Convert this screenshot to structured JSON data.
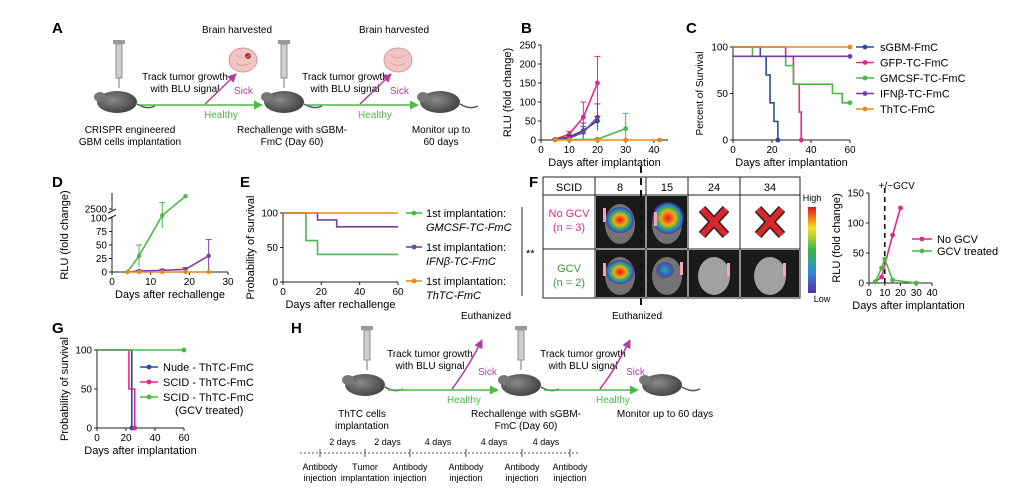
{
  "figure": {
    "panel_labels": [
      "A",
      "B",
      "C",
      "D",
      "E",
      "F",
      "G",
      "H"
    ]
  },
  "colors": {
    "magenta": "#e0288c",
    "green": "#4cb848",
    "blue": "#2c4a9e",
    "purple": "#7b3fa3",
    "orange": "#e88a1a",
    "gray": "#444444"
  },
  "panel_a": {
    "brain1": "Brain harvested",
    "brain2": "Brain harvested",
    "track1": "Track tumor growth",
    "track1b": "with BLU signal",
    "track2": "Track tumor growth",
    "track2b": "with BLU signal",
    "sick1": "Sick",
    "sick2": "Sick",
    "healthy1": "Healthy",
    "healthy2": "Healthy",
    "cap1a": "CRISPR engineered",
    "cap1b": "GBM cells implantation",
    "cap2a": "Rechallenge with sGBM-",
    "cap2b": "FmC (Day 60)",
    "cap3a": "Monitor up to",
    "cap3b": "60 days"
  },
  "panel_h": {
    "euth1": "Euthanized",
    "euth2": "Euthanized",
    "track1": "Track tumor growth",
    "track1b": "with BLU signal",
    "track2": "Track tumor growth",
    "track2b": "with BLU signal",
    "sick1": "Sick",
    "sick2": "Sick",
    "healthy1": "Healthy",
    "healthy2": "Healthy",
    "cap1a": "ThTC cells",
    "cap1b": "implantation",
    "cap2a": "Rechallenge with sGBM-",
    "cap2b": "FmC (Day 60)",
    "cap3": "Monitor up to 60 days",
    "intervals": [
      "2 days",
      "2 days",
      "4 days",
      "4 days",
      "4 days"
    ],
    "events": [
      [
        "Antibody",
        "injection"
      ],
      [
        "Tumor",
        "implantation"
      ],
      [
        "Antibody",
        "injection"
      ],
      [
        "Antibody",
        "injection"
      ],
      [
        "Antibody",
        "injection"
      ],
      [
        "Antibody",
        "injection"
      ]
    ]
  },
  "panel_f": {
    "header": [
      "SCID",
      "8",
      "15",
      "24",
      "34"
    ],
    "row1a": "No GCV",
    "row1b": "(n = 3)",
    "row2a": "GCV",
    "row2b": "(n = 2)",
    "scale_high": "High",
    "scale_low": "Low"
  },
  "chart_data": [
    {
      "panel": "B",
      "type": "line",
      "xlabel": "Days after implantation",
      "ylabel": "RLU (fold change)",
      "xlim": [
        0,
        45
      ],
      "ylim": [
        0,
        250
      ],
      "xticks": [
        "0",
        "10",
        "20",
        "30",
        "40"
      ],
      "yticks": [
        "0",
        "50",
        "100",
        "150",
        "200",
        "250"
      ],
      "series": [
        {
          "color": "#e0288c",
          "x": [
            5,
            10,
            15,
            20
          ],
          "y": [
            2,
            15,
            60,
            150
          ],
          "err": [
            1,
            8,
            40,
            70
          ]
        },
        {
          "color": "#2c4a9e",
          "x": [
            5,
            10,
            15,
            20
          ],
          "y": [
            1,
            8,
            25,
            50
          ],
          "err": [
            1,
            4,
            10,
            12
          ]
        },
        {
          "color": "#7b3fa3",
          "x": [
            5,
            10,
            15,
            20
          ],
          "y": [
            1,
            5,
            20,
            60
          ],
          "err": [
            1,
            3,
            25,
            35
          ]
        },
        {
          "color": "#4cb848",
          "x": [
            5,
            10,
            20,
            30
          ],
          "y": [
            0,
            1,
            2,
            30
          ],
          "err": [
            0,
            1,
            2,
            40
          ]
        },
        {
          "color": "#e88a1a",
          "x": [
            5,
            10,
            20,
            30,
            42
          ],
          "y": [
            0,
            0,
            0,
            0,
            0
          ],
          "err": [
            0,
            0,
            0,
            0,
            0
          ]
        }
      ]
    },
    {
      "panel": "C",
      "type": "line",
      "xlabel": "Days after implantation",
      "ylabel": "Percent of Survival",
      "xlim": [
        0,
        60
      ],
      "ylim": [
        0,
        100
      ],
      "xticks": [
        "0",
        "20",
        "40",
        "60"
      ],
      "yticks": [
        "0",
        "50",
        "100"
      ],
      "series": [
        {
          "name": "sGBM-FmC",
          "color": "#2c4a9e",
          "x": [
            0,
            14,
            14,
            17,
            17,
            19,
            19,
            21,
            21,
            23,
            23
          ],
          "y": [
            100,
            100,
            90,
            90,
            70,
            70,
            40,
            40,
            20,
            20,
            0
          ]
        },
        {
          "name": "GFP-TC-FmC",
          "color": "#e0288c",
          "x": [
            0,
            27,
            27,
            31,
            31,
            34,
            34,
            35,
            35
          ],
          "y": [
            100,
            100,
            90,
            90,
            60,
            60,
            30,
            30,
            0
          ]
        },
        {
          "name": "GMCSF-TC-FmC",
          "color": "#4cb848",
          "x": [
            0,
            10,
            10,
            27,
            27,
            31,
            31,
            51,
            51,
            56,
            56,
            60
          ],
          "y": [
            100,
            100,
            90,
            90,
            80,
            80,
            60,
            60,
            50,
            50,
            40,
            40
          ]
        },
        {
          "name": "IFNβ-TC-FmC",
          "color": "#7b3fa3",
          "x": [
            0,
            60
          ],
          "y": [
            90,
            90
          ]
        },
        {
          "name": "ThTC-FmC",
          "color": "#e88a1a",
          "x": [
            0,
            60
          ],
          "y": [
            100,
            100
          ]
        }
      ]
    },
    {
      "panel": "D",
      "type": "line",
      "xlabel": "Days after rechallenge",
      "ylabel": "RLU (fold change)",
      "xlim": [
        0,
        30
      ],
      "xticks": [
        "0",
        "10",
        "20",
        "30"
      ],
      "yticks": [
        "0",
        "25",
        "50",
        "75",
        "100",
        "2500"
      ],
      "series": [
        {
          "color": "#4cb848",
          "x": [
            4,
            7,
            13,
            19
          ],
          "y": [
            0,
            30,
            2300,
            2900
          ],
          "err": [
            0,
            20,
            400,
            0
          ]
        },
        {
          "color": "#7b3fa3",
          "x": [
            4,
            7,
            13,
            19,
            25
          ],
          "y": [
            0,
            2,
            3,
            5,
            30
          ],
          "err": [
            0,
            1,
            2,
            3,
            30
          ]
        },
        {
          "color": "#e88a1a",
          "x": [
            4,
            7,
            13,
            19,
            25
          ],
          "y": [
            0,
            0,
            0,
            0,
            0
          ],
          "err": [
            0,
            0,
            0,
            0,
            0
          ]
        }
      ]
    },
    {
      "panel": "E",
      "type": "line",
      "xlabel": "Days after rechallenge",
      "ylabel": "Probability of survival",
      "xlim": [
        0,
        60
      ],
      "ylim": [
        0,
        100
      ],
      "xticks": [
        "0",
        "20",
        "40",
        "60"
      ],
      "yticks": [
        "0",
        "50",
        "100"
      ],
      "significance": "**",
      "series": [
        {
          "name": "1st implantation: GMCSF-TC-FmC",
          "name_line1": "1st implantation:",
          "name_line2": "GMCSF-TC-FmC",
          "color": "#4cb848",
          "x": [
            0,
            12,
            12,
            18,
            18,
            60
          ],
          "y": [
            100,
            100,
            60,
            60,
            40,
            40
          ]
        },
        {
          "name": "1st implantation: IFNβ-TC-FmC",
          "name_line1": "1st implantation:",
          "name_line2": "IFNβ-TC-FmC",
          "color": "#7b3fa3",
          "x": [
            0,
            18,
            18,
            28,
            28,
            60
          ],
          "y": [
            100,
            100,
            90,
            90,
            80,
            80
          ]
        },
        {
          "name": "1st implantation: ThTC-FmC",
          "name_line1": "1st implantation:",
          "name_line2": "ThTC-FmC",
          "color": "#e88a1a",
          "x": [
            0,
            60
          ],
          "y": [
            100,
            100
          ]
        }
      ]
    },
    {
      "panel": "F",
      "type": "line",
      "xlabel": "Days after implantation",
      "ylabel": "RLU (fold change)",
      "xlim": [
        0,
        40
      ],
      "ylim": [
        0,
        150
      ],
      "xticks": [
        "0",
        "10",
        "20",
        "30",
        "40"
      ],
      "yticks": [
        "0",
        "50",
        "100",
        "150"
      ],
      "annotation": "+/−GCV",
      "vline_x": 10,
      "series": [
        {
          "name": "No GCV",
          "color": "#e0288c",
          "x": [
            4,
            8,
            15,
            20
          ],
          "y": [
            2,
            10,
            80,
            125
          ]
        },
        {
          "name": "GCV treated",
          "color": "#4cb848",
          "x": [
            4,
            8,
            10,
            15,
            30
          ],
          "y": [
            2,
            25,
            40,
            5,
            0
          ]
        }
      ]
    },
    {
      "panel": "G",
      "type": "line",
      "xlabel": "Days after implantation",
      "ylabel": "Probability of survival",
      "xlim": [
        0,
        60
      ],
      "ylim": [
        0,
        100
      ],
      "xticks": [
        "0",
        "20",
        "40",
        "60"
      ],
      "yticks": [
        "0",
        "50",
        "100"
      ],
      "series": [
        {
          "name": "Nude - ThTC-FmC",
          "color": "#2c4a9e",
          "x": [
            0,
            24,
            24
          ],
          "y": [
            100,
            100,
            0
          ]
        },
        {
          "name": "SCID - ThTC-FmC",
          "color": "#e0288c",
          "x": [
            0,
            22,
            22,
            26,
            26
          ],
          "y": [
            100,
            100,
            50,
            50,
            0
          ]
        },
        {
          "name": "SCID - ThTC-FmC",
          "name_line2": "(GCV treated)",
          "color": "#4cb848",
          "x": [
            0,
            60
          ],
          "y": [
            100,
            100
          ]
        }
      ]
    }
  ]
}
